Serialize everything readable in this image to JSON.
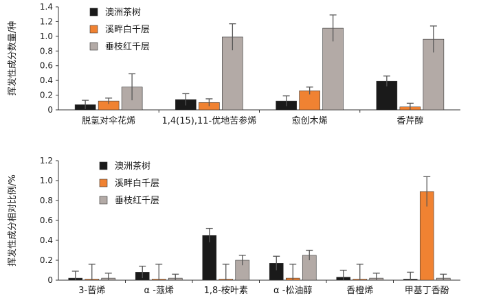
{
  "chart_data": [
    {
      "type": "bar",
      "ylabel": "挥发性成分数量/种",
      "ylim": [
        0,
        1.4
      ],
      "yticks": [
        "0",
        "0.2",
        "0.4",
        "0.6",
        "0.8",
        "1.0",
        "1.2",
        "1.4"
      ],
      "categories": [
        "脱氢对伞花烯",
        "1,4(15),11-优地苦参烯",
        "愈创木烯",
        "香芹醇"
      ],
      "legend_placement": "top-left",
      "series": [
        {
          "name": "澳洲茶树",
          "color": "#1a1a1a",
          "values": [
            0.07,
            0.14,
            0.12,
            0.39
          ],
          "errors": [
            0.06,
            0.08,
            0.07,
            0.07
          ]
        },
        {
          "name": "溪畔白千层",
          "color": "#f08232",
          "values": [
            0.12,
            0.1,
            0.26,
            0.04
          ],
          "errors": [
            0.04,
            0.05,
            0.05,
            0.05
          ]
        },
        {
          "name": "垂枝红千层",
          "color": "#b3aaa6",
          "values": [
            0.31,
            0.99,
            1.11,
            0.96
          ],
          "errors": [
            0.18,
            0.18,
            0.18,
            0.18
          ]
        }
      ]
    },
    {
      "type": "bar",
      "ylabel": "挥发性成分相对比例/%",
      "ylim": [
        0,
        1.2
      ],
      "yticks": [
        "0",
        "0.2",
        "0.4",
        "0.6",
        "0.8",
        "1.0",
        "1.2"
      ],
      "categories": [
        "3-蒈烯",
        "α -蒎烯",
        "1,8-桉叶素",
        "α -松油醇",
        "香橙烯",
        "甲基丁香酚"
      ],
      "legend_placement": "top-left",
      "series": [
        {
          "name": "澳洲茶树",
          "color": "#1a1a1a",
          "values": [
            0.02,
            0.08,
            0.45,
            0.17,
            0.03,
            0.01
          ],
          "errors": [
            0.07,
            0.06,
            0.07,
            0.07,
            0.07,
            0.07
          ]
        },
        {
          "name": "溪畔白千层",
          "color": "#f08232",
          "values": [
            0.01,
            0.01,
            0.01,
            0.02,
            0.01,
            0.89
          ],
          "errors": [
            0.15,
            0.15,
            0.15,
            0.14,
            0.15,
            0.15
          ]
        },
        {
          "name": "垂枝红千层",
          "color": "#b3aaa6",
          "values": [
            0.02,
            0.02,
            0.2,
            0.25,
            0.02,
            0.02
          ],
          "errors": [
            0.05,
            0.04,
            0.05,
            0.05,
            0.05,
            0.04
          ]
        }
      ]
    }
  ]
}
